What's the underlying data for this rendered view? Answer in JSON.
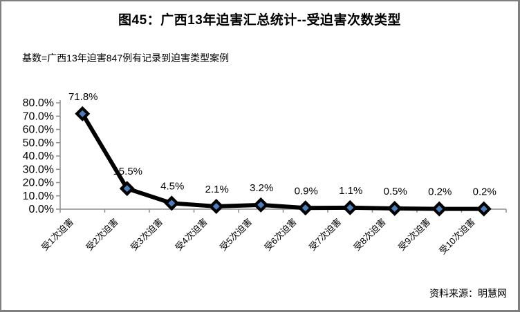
{
  "title": "图45：广西13年迫害汇总统计--受迫害次数类型",
  "subtitle": "基数=广西13年迫害847例有记录到迫害类型案例",
  "source": "资料来源：明慧网",
  "colors": {
    "line": "#000000",
    "marker_fill": "#4b7ebb",
    "marker_border": "#000000",
    "axis": "#8e8e8e",
    "text": "#000000",
    "frame_border": "#7f7f7f"
  },
  "chart_data": {
    "type": "line",
    "title": "图45：广西13年迫害汇总统计--受迫害次数类型",
    "subtitle": "基数=广西13年迫害847例有记录到迫害类型案例",
    "categories": [
      "受1次迫害",
      "受2次迫害",
      "受3次迫害",
      "受4次迫害",
      "受5次迫害",
      "受6次迫害",
      "受7次迫害",
      "受8次迫害",
      "受9次迫害",
      "受10次迫害"
    ],
    "values": [
      71.8,
      15.5,
      4.5,
      2.1,
      3.2,
      0.9,
      1.1,
      0.5,
      0.2,
      0.2
    ],
    "data_labels": [
      "71.8%",
      "15.5%",
      "4.5%",
      "2.1%",
      "3.2%",
      "0.9%",
      "1.1%",
      "0.5%",
      "0.2%",
      "0.2%"
    ],
    "y_tick_labels": [
      "0.0%",
      "10.0%",
      "20.0%",
      "30.0%",
      "40.0%",
      "50.0%",
      "60.0%",
      "70.0%",
      "80.0%"
    ],
    "ylim": [
      0,
      80
    ],
    "xlabel": "",
    "ylabel": "",
    "grid": false,
    "legend_position": "none",
    "marker_shape": "diamond",
    "x_label_rotation_deg": -45,
    "source_note": "资料来源：明慧网"
  }
}
